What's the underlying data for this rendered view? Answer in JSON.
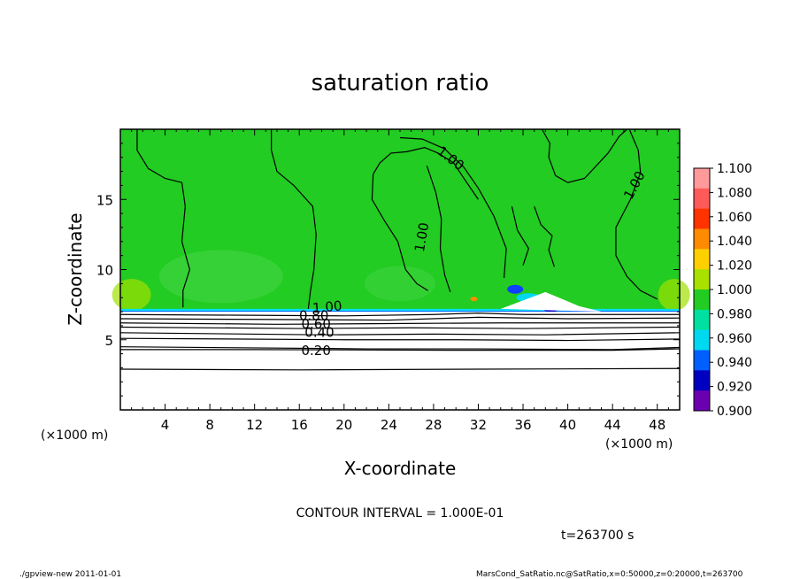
{
  "chart_data": {
    "type": "heatmap",
    "title": "saturation ratio",
    "xlabel": "X-coordinate",
    "ylabel": "Z-coordinate",
    "x_unit_left": "(×1000 m)",
    "x_unit_right": "(×1000 m)",
    "xlim": [
      0,
      50
    ],
    "ylim": [
      0,
      20
    ],
    "xticks": [
      4,
      8,
      12,
      16,
      20,
      24,
      28,
      32,
      36,
      40,
      44,
      48
    ],
    "yticks": [
      5,
      10,
      15
    ],
    "colorbar": {
      "levels": [
        "1.100",
        "1.080",
        "1.060",
        "1.040",
        "1.020",
        "1.000",
        "0.980",
        "0.960",
        "0.940",
        "0.920",
        "0.900"
      ],
      "colors": [
        "#ff9a9a",
        "#ff5a5a",
        "#ff3300",
        "#ff8c00",
        "#ffd000",
        "#a8e000",
        "#22cc22",
        "#00e0a0",
        "#00d8f0",
        "#0060ff",
        "#0000c0",
        "#6a00b0"
      ]
    },
    "contour_labels": [
      {
        "label": "1.00",
        "x": 18.5,
        "z": 7.3,
        "rot": -5
      },
      {
        "label": "1.00",
        "x": 29.5,
        "z": 17.9,
        "rot": 38
      },
      {
        "label": "1.00",
        "x": 27.0,
        "z": 12.3,
        "rot": -80
      },
      {
        "label": "1.00",
        "x": 46.0,
        "z": 16.0,
        "rot": -62
      },
      {
        "label": "0.80",
        "x": 17.3,
        "z": 6.7,
        "rot": 0
      },
      {
        "label": "0.60",
        "x": 17.5,
        "z": 6.1,
        "rot": 0
      },
      {
        "label": "0.40",
        "x": 17.8,
        "z": 5.5,
        "rot": 0
      },
      {
        "label": "0.20",
        "x": 17.5,
        "z": 4.2,
        "rot": 0
      }
    ],
    "contour_interval_text": "CONTOUR INTERVAL = 1.000E-01",
    "time_text": "t=263700 s"
  },
  "footer": {
    "left": "./gpview-new   2011-01-01",
    "right": "MarsCond_SatRatio.nc@SatRatio,x=0:50000,z=0:20000,t=263700"
  },
  "colors": {
    "field_green": "#22cc22",
    "background": "#ffffff"
  }
}
